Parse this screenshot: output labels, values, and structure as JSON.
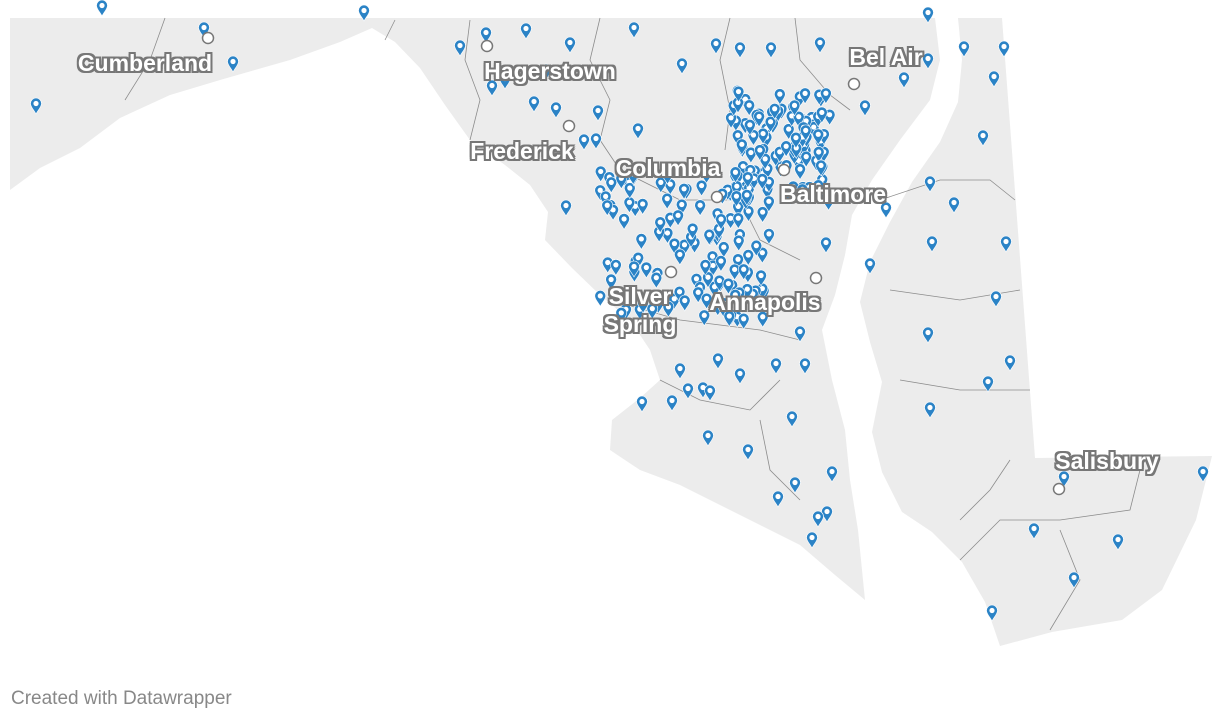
{
  "map": {
    "region": "Maryland",
    "land_color": "#ececec",
    "border_color": "#8c8c8c",
    "marker_color": "#2b83c6",
    "marker_icon": "map-pin-icon",
    "cities": [
      {
        "name": "Cumberland"
      },
      {
        "name": "Hagerstown"
      },
      {
        "name": "Bel Air"
      },
      {
        "name": "Frederick"
      },
      {
        "name": "Columbia"
      },
      {
        "name": "Baltimore"
      },
      {
        "name": "Silver\nSpring"
      },
      {
        "name": "Annapolis"
      },
      {
        "name": "Salisbury"
      }
    ]
  },
  "footer": {
    "credit": "Created with Datawrapper"
  }
}
